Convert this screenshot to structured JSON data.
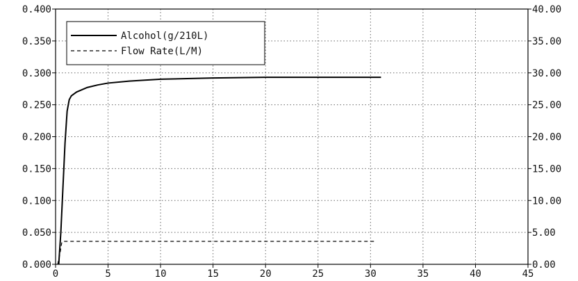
{
  "chart_data": {
    "type": "line",
    "title": "",
    "xlabel": "",
    "ylabel": "",
    "y2label": "",
    "xlim": [
      0,
      45
    ],
    "ylim": [
      0,
      0.4
    ],
    "y2lim": [
      0,
      40
    ],
    "x_ticks": [
      "0",
      "5",
      "10",
      "15",
      "20",
      "25",
      "30",
      "35",
      "40",
      "45"
    ],
    "y_ticks": [
      "0.000",
      "0.050",
      "0.100",
      "0.150",
      "0.200",
      "0.250",
      "0.300",
      "0.350",
      "0.400"
    ],
    "y2_ticks": [
      "0.00",
      "5.00",
      "10.00",
      "15.00",
      "20.00",
      "25.00",
      "30.00",
      "35.00",
      "40.00"
    ],
    "grid": true,
    "legend_position": "top-left",
    "series": [
      {
        "name": "Alcohol(g/210L)",
        "axis": "left",
        "style": "solid",
        "color": "#000000",
        "x": [
          0.3,
          0.5,
          0.7,
          0.9,
          1.1,
          1.3,
          1.5,
          2,
          3,
          4,
          5,
          7,
          10,
          15,
          20,
          25,
          30,
          31
        ],
        "y": [
          0.0,
          0.05,
          0.12,
          0.19,
          0.24,
          0.258,
          0.264,
          0.27,
          0.277,
          0.281,
          0.284,
          0.287,
          0.29,
          0.292,
          0.293,
          0.293,
          0.293,
          0.293
        ]
      },
      {
        "name": "Flow Rate(L/M)",
        "axis": "right",
        "style": "dashed",
        "color": "#000000",
        "x": [
          0.2,
          0.4,
          0.6,
          0.8,
          1,
          2,
          5,
          10,
          15,
          20,
          25,
          30,
          30.5
        ],
        "y": [
          0.0,
          1.5,
          3.5,
          3.6,
          3.6,
          3.6,
          3.6,
          3.6,
          3.6,
          3.6,
          3.6,
          3.6,
          3.6
        ]
      }
    ]
  }
}
